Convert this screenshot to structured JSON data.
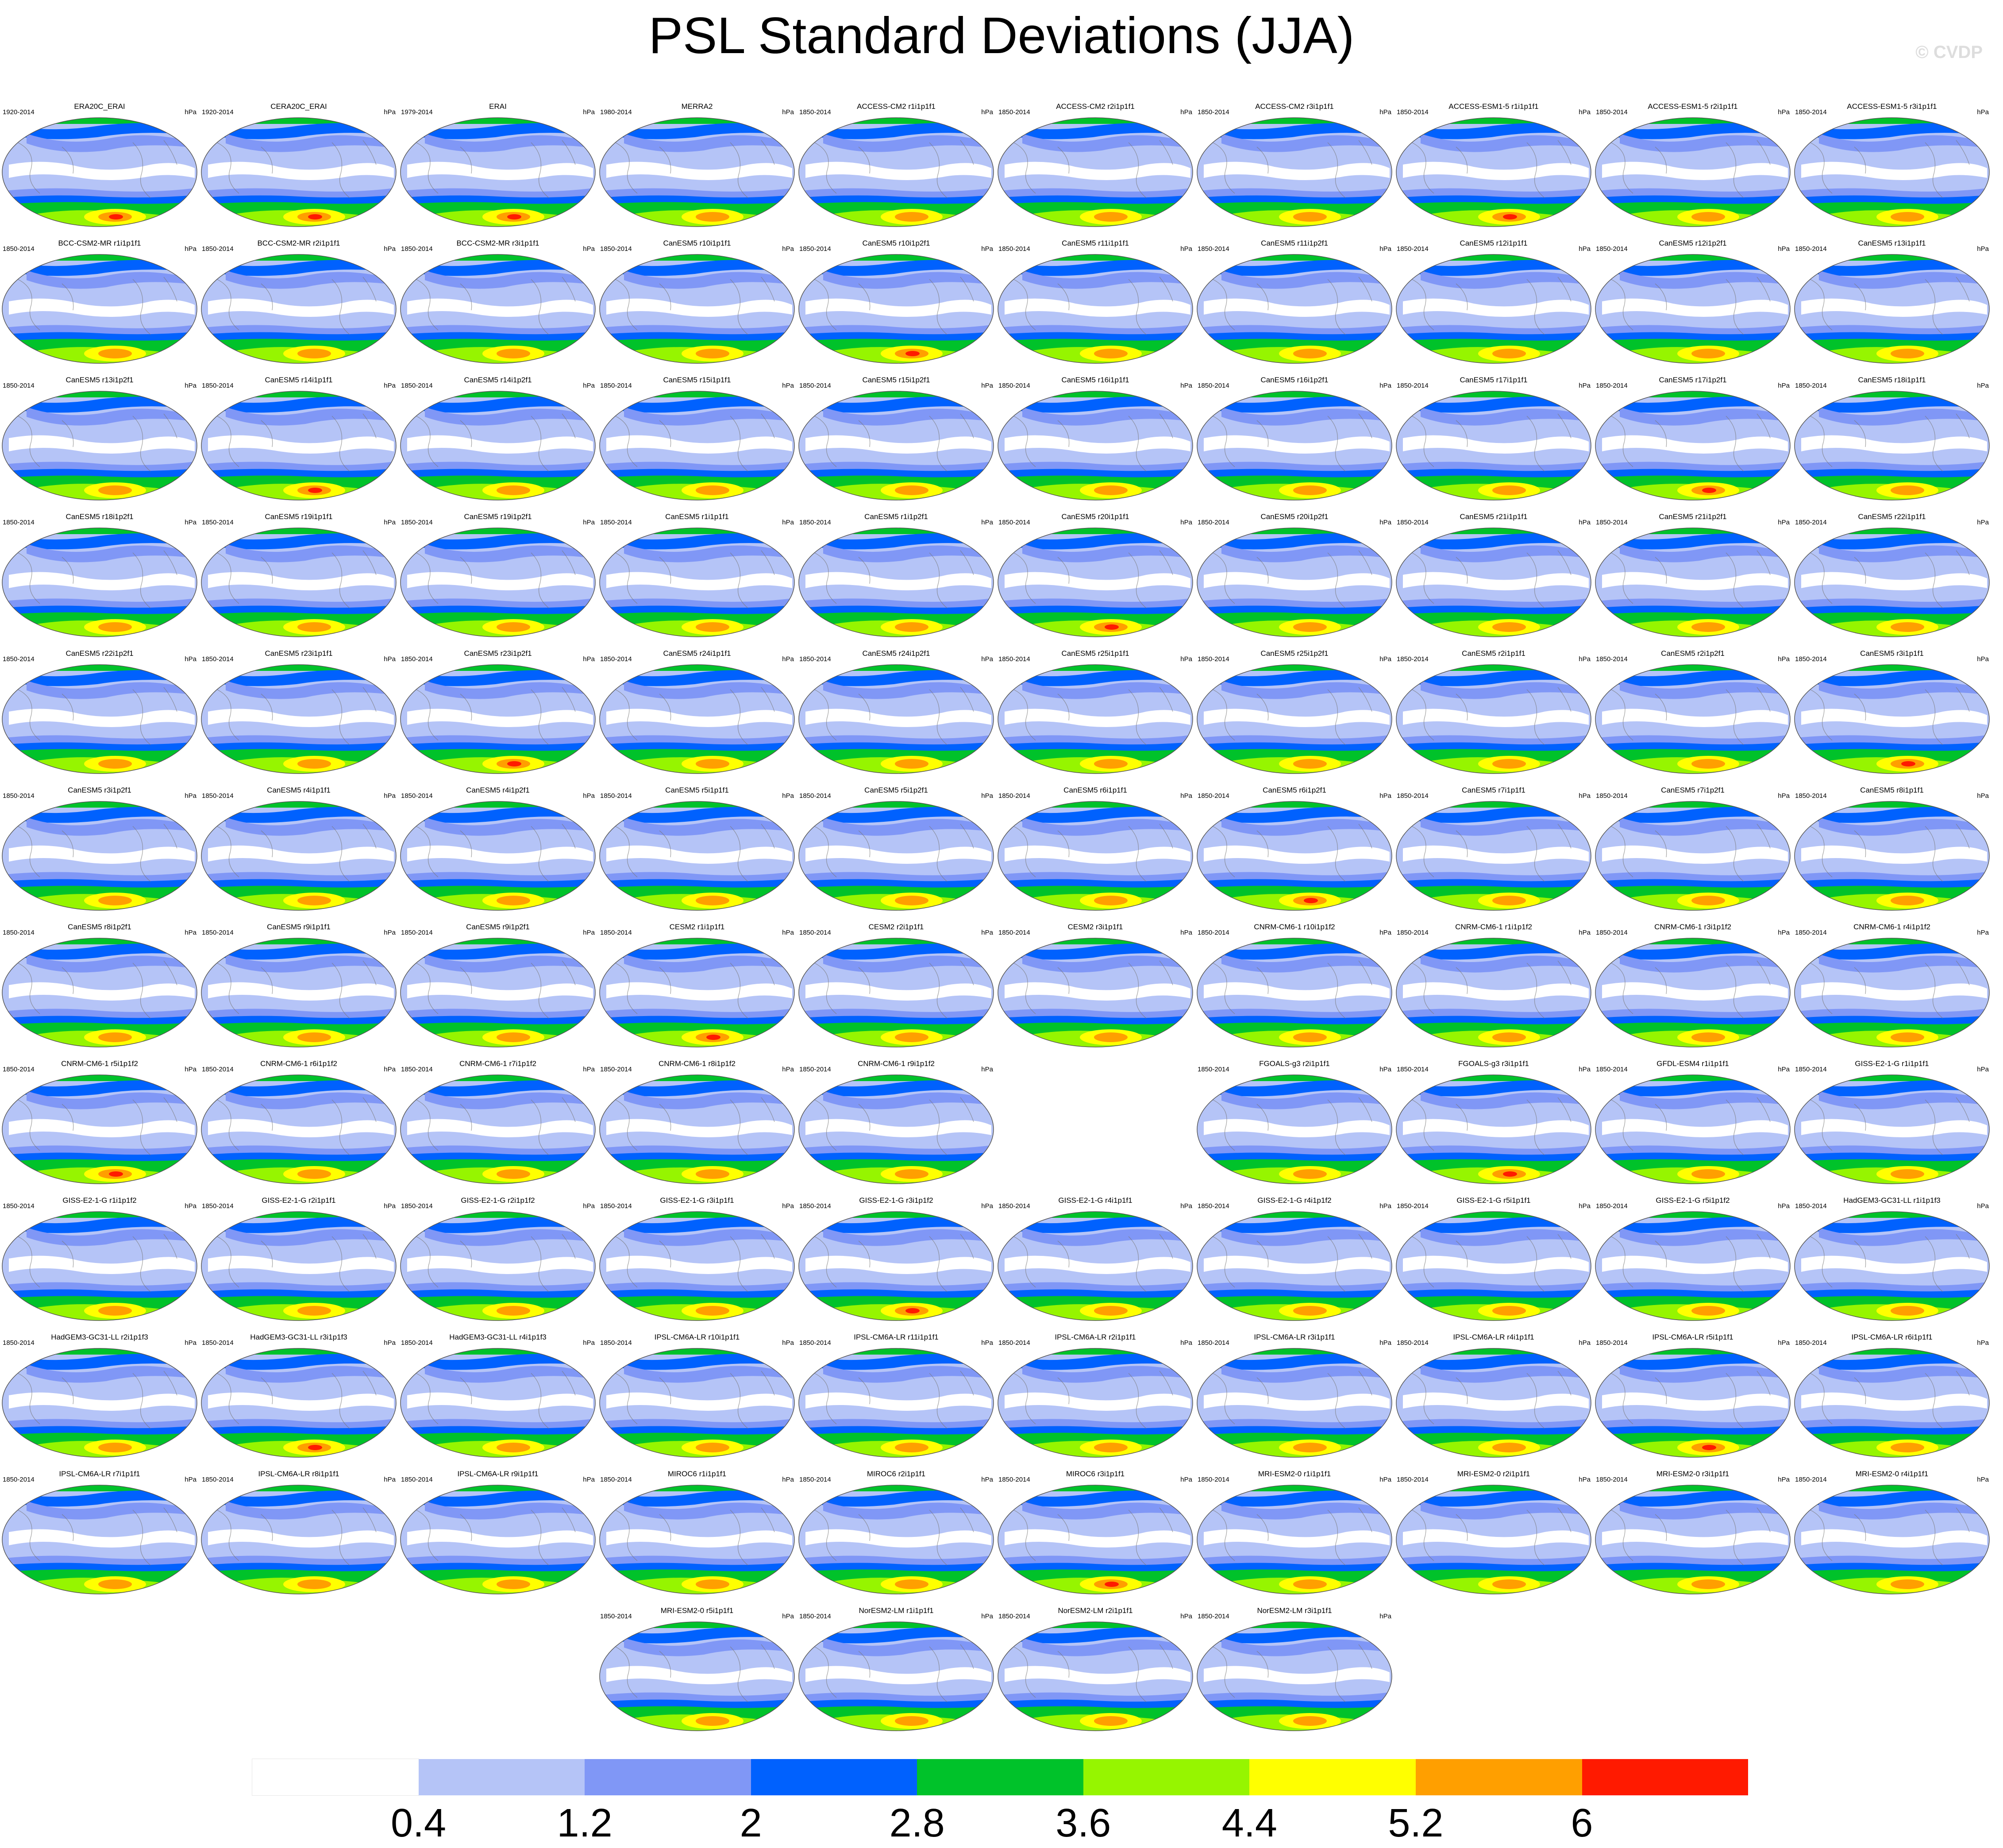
{
  "title": "PSL Standard Deviations (JJA)",
  "watermark": "© CVDP",
  "unit_label": "hPa",
  "colorbar": {
    "colors": [
      "#ffffff",
      "#b5c4f7",
      "#8097f6",
      "#0061fe",
      "#00c22a",
      "#96f500",
      "#ffff00",
      "#ff9f00",
      "#ff1a00"
    ],
    "ticks": [
      "0.4",
      "1.2",
      "2",
      "2.8",
      "3.6",
      "4.4",
      "5.2",
      "6"
    ]
  },
  "panels": [
    {
      "name": "ERA20C_ERAI",
      "years": "1920-2014"
    },
    {
      "name": "CERA20C_ERAI",
      "years": "1920-2014"
    },
    {
      "name": "ERAI",
      "years": "1979-2014"
    },
    {
      "name": "MERRA2",
      "years": "1980-2014"
    },
    {
      "name": "ACCESS-CM2 r1i1p1f1",
      "years": "1850-2014"
    },
    {
      "name": "ACCESS-CM2 r2i1p1f1",
      "years": "1850-2014"
    },
    {
      "name": "ACCESS-CM2 r3i1p1f1",
      "years": "1850-2014"
    },
    {
      "name": "ACCESS-ESM1-5 r1i1p1f1",
      "years": "1850-2014"
    },
    {
      "name": "ACCESS-ESM1-5 r2i1p1f1",
      "years": "1850-2014"
    },
    {
      "name": "ACCESS-ESM1-5 r3i1p1f1",
      "years": "1850-2014"
    },
    {
      "name": "BCC-CSM2-MR r1i1p1f1",
      "years": "1850-2014"
    },
    {
      "name": "BCC-CSM2-MR r2i1p1f1",
      "years": "1850-2014"
    },
    {
      "name": "BCC-CSM2-MR r3i1p1f1",
      "years": "1850-2014"
    },
    {
      "name": "CanESM5 r10i1p1f1",
      "years": "1850-2014"
    },
    {
      "name": "CanESM5 r10i1p2f1",
      "years": "1850-2014"
    },
    {
      "name": "CanESM5 r11i1p1f1",
      "years": "1850-2014"
    },
    {
      "name": "CanESM5 r11i1p2f1",
      "years": "1850-2014"
    },
    {
      "name": "CanESM5 r12i1p1f1",
      "years": "1850-2014"
    },
    {
      "name": "CanESM5 r12i1p2f1",
      "years": "1850-2014"
    },
    {
      "name": "CanESM5 r13i1p1f1",
      "years": "1850-2014"
    },
    {
      "name": "CanESM5 r13i1p2f1",
      "years": "1850-2014"
    },
    {
      "name": "CanESM5 r14i1p1f1",
      "years": "1850-2014"
    },
    {
      "name": "CanESM5 r14i1p2f1",
      "years": "1850-2014"
    },
    {
      "name": "CanESM5 r15i1p1f1",
      "years": "1850-2014"
    },
    {
      "name": "CanESM5 r15i1p2f1",
      "years": "1850-2014"
    },
    {
      "name": "CanESM5 r16i1p1f1",
      "years": "1850-2014"
    },
    {
      "name": "CanESM5 r16i1p2f1",
      "years": "1850-2014"
    },
    {
      "name": "CanESM5 r17i1p1f1",
      "years": "1850-2014"
    },
    {
      "name": "CanESM5 r17i1p2f1",
      "years": "1850-2014"
    },
    {
      "name": "CanESM5 r18i1p1f1",
      "years": "1850-2014"
    },
    {
      "name": "CanESM5 r18i1p2f1",
      "years": "1850-2014"
    },
    {
      "name": "CanESM5 r19i1p1f1",
      "years": "1850-2014"
    },
    {
      "name": "CanESM5 r19i1p2f1",
      "years": "1850-2014"
    },
    {
      "name": "CanESM5 r1i1p1f1",
      "years": "1850-2014"
    },
    {
      "name": "CanESM5 r1i1p2f1",
      "years": "1850-2014"
    },
    {
      "name": "CanESM5 r20i1p1f1",
      "years": "1850-2014"
    },
    {
      "name": "CanESM5 r20i1p2f1",
      "years": "1850-2014"
    },
    {
      "name": "CanESM5 r21i1p1f1",
      "years": "1850-2014"
    },
    {
      "name": "CanESM5 r21i1p2f1",
      "years": "1850-2014"
    },
    {
      "name": "CanESM5 r22i1p1f1",
      "years": "1850-2014"
    },
    {
      "name": "CanESM5 r22i1p2f1",
      "years": "1850-2014"
    },
    {
      "name": "CanESM5 r23i1p1f1",
      "years": "1850-2014"
    },
    {
      "name": "CanESM5 r23i1p2f1",
      "years": "1850-2014"
    },
    {
      "name": "CanESM5 r24i1p1f1",
      "years": "1850-2014"
    },
    {
      "name": "CanESM5 r24i1p2f1",
      "years": "1850-2014"
    },
    {
      "name": "CanESM5 r25i1p1f1",
      "years": "1850-2014"
    },
    {
      "name": "CanESM5 r25i1p2f1",
      "years": "1850-2014"
    },
    {
      "name": "CanESM5 r2i1p1f1",
      "years": "1850-2014"
    },
    {
      "name": "CanESM5 r2i1p2f1",
      "years": "1850-2014"
    },
    {
      "name": "CanESM5 r3i1p1f1",
      "years": "1850-2014"
    },
    {
      "name": "CanESM5 r3i1p2f1",
      "years": "1850-2014"
    },
    {
      "name": "CanESM5 r4i1p1f1",
      "years": "1850-2014"
    },
    {
      "name": "CanESM5 r4i1p2f1",
      "years": "1850-2014"
    },
    {
      "name": "CanESM5 r5i1p1f1",
      "years": "1850-2014"
    },
    {
      "name": "CanESM5 r5i1p2f1",
      "years": "1850-2014"
    },
    {
      "name": "CanESM5 r6i1p1f1",
      "years": "1850-2014"
    },
    {
      "name": "CanESM5 r6i1p2f1",
      "years": "1850-2014"
    },
    {
      "name": "CanESM5 r7i1p1f1",
      "years": "1850-2014"
    },
    {
      "name": "CanESM5 r7i1p2f1",
      "years": "1850-2014"
    },
    {
      "name": "CanESM5 r8i1p1f1",
      "years": "1850-2014"
    },
    {
      "name": "CanESM5 r8i1p2f1",
      "years": "1850-2014"
    },
    {
      "name": "CanESM5 r9i1p1f1",
      "years": "1850-2014"
    },
    {
      "name": "CanESM5 r9i1p2f1",
      "years": "1850-2014"
    },
    {
      "name": "CESM2 r1i1p1f1",
      "years": "1850-2014"
    },
    {
      "name": "CESM2 r2i1p1f1",
      "years": "1850-2014"
    },
    {
      "name": "CESM2 r3i1p1f1",
      "years": "1850-2014"
    },
    {
      "name": "CNRM-CM6-1 r10i1p1f2",
      "years": "1850-2014"
    },
    {
      "name": "CNRM-CM6-1 r1i1p1f2",
      "years": "1850-2014"
    },
    {
      "name": "CNRM-CM6-1 r3i1p1f2",
      "years": "1850-2014"
    },
    {
      "name": "CNRM-CM6-1 r4i1p1f2",
      "years": "1850-2014"
    },
    {
      "name": "CNRM-CM6-1 r5i1p1f2",
      "years": "1850-2014"
    },
    {
      "name": "CNRM-CM6-1 r6i1p1f2",
      "years": "1850-2014"
    },
    {
      "name": "CNRM-CM6-1 r7i1p1f2",
      "years": "1850-2014"
    },
    {
      "name": "CNRM-CM6-1 r8i1p1f2",
      "years": "1850-2014"
    },
    {
      "name": "CNRM-CM6-1 r9i1p1f2",
      "years": "1850-2014"
    },
    null,
    {
      "name": "FGOALS-g3 r2i1p1f1",
      "years": "1850-2014"
    },
    {
      "name": "FGOALS-g3 r3i1p1f1",
      "years": "1850-2014"
    },
    {
      "name": "GFDL-ESM4 r1i1p1f1",
      "years": "1850-2014"
    },
    {
      "name": "GISS-E2-1-G r1i1p1f1",
      "years": "1850-2014"
    },
    {
      "name": "GISS-E2-1-G r1i1p1f2",
      "years": "1850-2014"
    },
    {
      "name": "GISS-E2-1-G r2i1p1f1",
      "years": "1850-2014"
    },
    {
      "name": "GISS-E2-1-G r2i1p1f2",
      "years": "1850-2014"
    },
    {
      "name": "GISS-E2-1-G r3i1p1f1",
      "years": "1850-2014"
    },
    {
      "name": "GISS-E2-1-G r3i1p1f2",
      "years": "1850-2014"
    },
    {
      "name": "GISS-E2-1-G r4i1p1f1",
      "years": "1850-2014"
    },
    {
      "name": "GISS-E2-1-G r4i1p1f2",
      "years": "1850-2014"
    },
    {
      "name": "GISS-E2-1-G r5i1p1f1",
      "years": "1850-2014"
    },
    {
      "name": "GISS-E2-1-G r5i1p1f2",
      "years": "1850-2014"
    },
    {
      "name": "HadGEM3-GC31-LL r1i1p1f3",
      "years": "1850-2014"
    },
    {
      "name": "HadGEM3-GC31-LL r2i1p1f3",
      "years": "1850-2014"
    },
    {
      "name": "HadGEM3-GC31-LL r3i1p1f3",
      "years": "1850-2014"
    },
    {
      "name": "HadGEM3-GC31-LL r4i1p1f3",
      "years": "1850-2014"
    },
    {
      "name": "IPSL-CM6A-LR r10i1p1f1",
      "years": "1850-2014"
    },
    {
      "name": "IPSL-CM6A-LR r11i1p1f1",
      "years": "1850-2014"
    },
    {
      "name": "IPSL-CM6A-LR r2i1p1f1",
      "years": "1850-2014"
    },
    {
      "name": "IPSL-CM6A-LR r3i1p1f1",
      "years": "1850-2014"
    },
    {
      "name": "IPSL-CM6A-LR r4i1p1f1",
      "years": "1850-2014"
    },
    {
      "name": "IPSL-CM6A-LR r5i1p1f1",
      "years": "1850-2014"
    },
    {
      "name": "IPSL-CM6A-LR r6i1p1f1",
      "years": "1850-2014"
    },
    {
      "name": "IPSL-CM6A-LR r7i1p1f1",
      "years": "1850-2014"
    },
    {
      "name": "IPSL-CM6A-LR r8i1p1f1",
      "years": "1850-2014"
    },
    {
      "name": "IPSL-CM6A-LR r9i1p1f1",
      "years": "1850-2014"
    },
    {
      "name": "MIROC6 r1i1p1f1",
      "years": "1850-2014"
    },
    {
      "name": "MIROC6 r2i1p1f1",
      "years": "1850-2014"
    },
    {
      "name": "MIROC6 r3i1p1f1",
      "years": "1850-2014"
    },
    {
      "name": "MRI-ESM2-0 r1i1p1f1",
      "years": "1850-2014"
    },
    {
      "name": "MRI-ESM2-0 r2i1p1f1",
      "years": "1850-2014"
    },
    {
      "name": "MRI-ESM2-0 r3i1p1f1",
      "years": "1850-2014"
    },
    {
      "name": "MRI-ESM2-0 r4i1p1f1",
      "years": "1850-2014"
    },
    null,
    null,
    null,
    {
      "name": "MRI-ESM2-0 r5i1p1f1",
      "years": "1850-2014"
    },
    {
      "name": "NorESM2-LM r1i1p1f1",
      "years": "1850-2014"
    },
    {
      "name": "NorESM2-LM r2i1p1f1",
      "years": "1850-2014"
    },
    {
      "name": "NorESM2-LM r3i1p1f1",
      "years": "1850-2014"
    },
    null,
    null,
    null
  ]
}
